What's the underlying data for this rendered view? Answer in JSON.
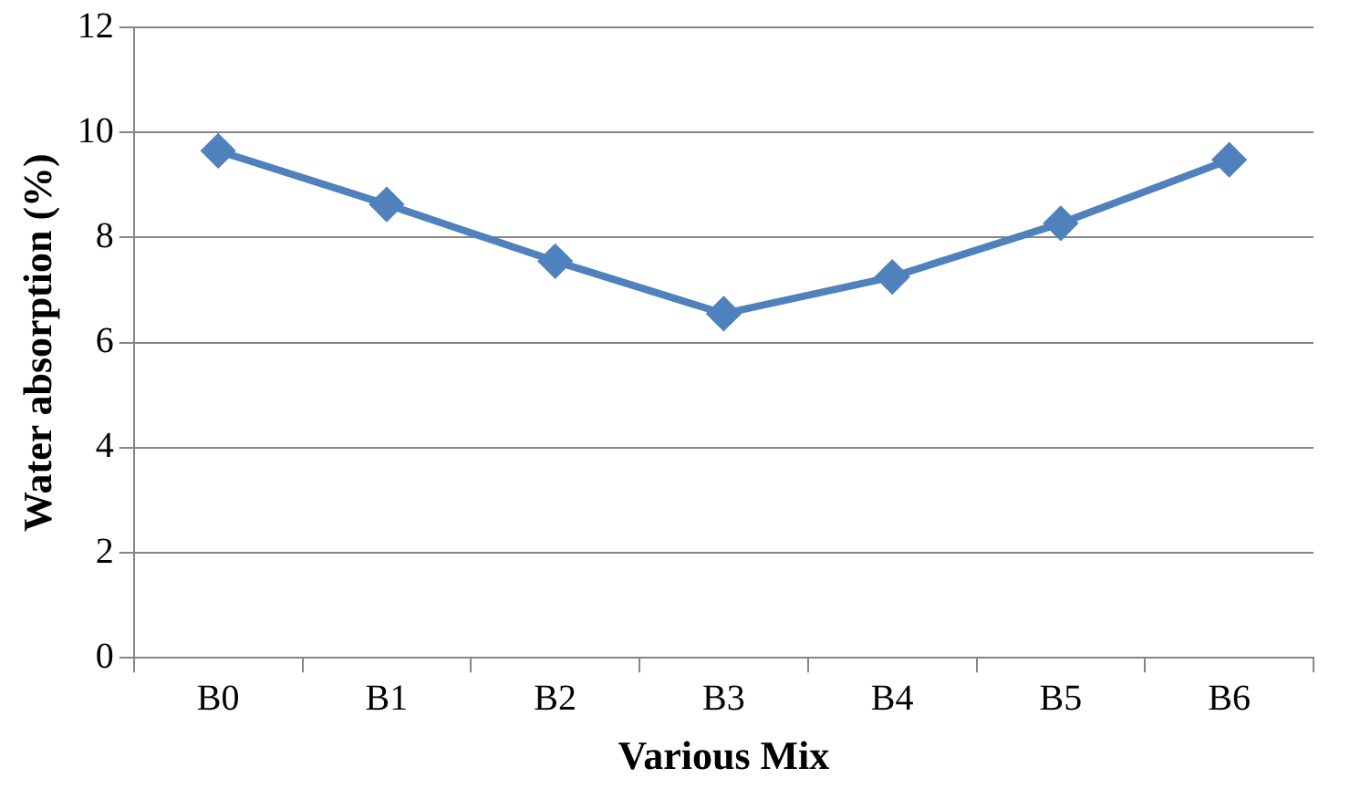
{
  "chart_data": {
    "type": "line",
    "xlabel": "Various Mix",
    "ylabel": "Water absorption (%)",
    "categories": [
      "B0",
      "B1",
      "B2",
      "B3",
      "B4",
      "B5",
      "B6"
    ],
    "series": [
      {
        "color": "#4f81bd",
        "values": [
          9.65,
          8.63,
          7.55,
          6.55,
          7.25,
          8.27,
          9.48
        ]
      }
    ],
    "ylim": [
      0,
      12
    ],
    "yticks": [
      0,
      2,
      4,
      6,
      8,
      10,
      12
    ],
    "grid": "y",
    "legend": false,
    "marker": "diamond",
    "line_style": "solid"
  }
}
